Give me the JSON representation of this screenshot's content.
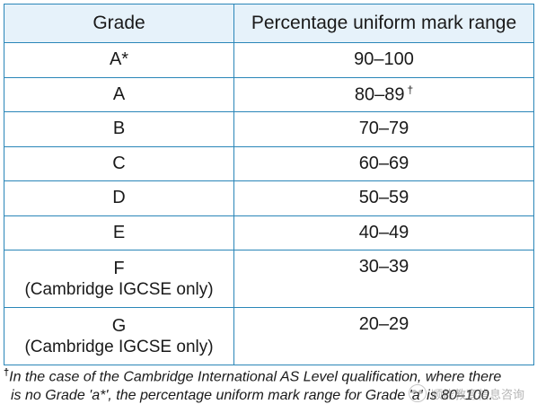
{
  "table": {
    "headers": [
      "Grade",
      "Percentage uniform mark range"
    ],
    "rows": [
      {
        "grade": "A*",
        "note": "",
        "range": "90–100",
        "dagger": ""
      },
      {
        "grade": "A",
        "note": "",
        "range": "80–89",
        "dagger": "†"
      },
      {
        "grade": "B",
        "note": "",
        "range": "70–79",
        "dagger": ""
      },
      {
        "grade": "C",
        "note": "",
        "range": "60–69",
        "dagger": ""
      },
      {
        "grade": "D",
        "note": "",
        "range": "50–59",
        "dagger": ""
      },
      {
        "grade": "E",
        "note": "",
        "range": "40–49",
        "dagger": ""
      },
      {
        "grade": "F",
        "note": "(Cambridge IGCSE only)",
        "range": "30–39",
        "dagger": ""
      },
      {
        "grade": "G",
        "note": "(Cambridge IGCSE only)",
        "range": "20–29",
        "dagger": ""
      }
    ]
  },
  "footnote": {
    "marker": "†",
    "line1": "In the case of the Cambridge International AS Level qualification, where there",
    "line2": "is no Grade 'a*', the percentage uniform mark range for Grade 'a' is 80–100."
  },
  "watermark": {
    "icon": "wechat-icon",
    "text": "顺能教育信息咨询"
  }
}
